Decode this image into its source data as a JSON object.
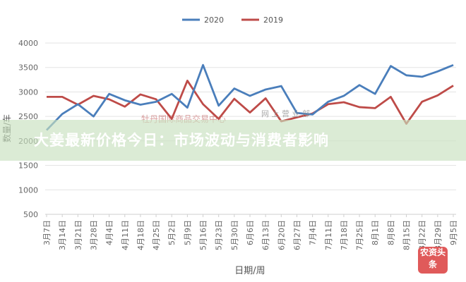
{
  "chart_data": {
    "type": "line",
    "title": "",
    "xlabel": "日期/周",
    "ylabel": "数量/车",
    "ylim": [
      500,
      4000
    ],
    "yticks": [
      500,
      1000,
      1500,
      2000,
      2500,
      3000,
      3500,
      4000
    ],
    "grid": true,
    "legend_position": "top",
    "categories": [
      "3月7日",
      "3月14日",
      "3月21日",
      "3月28日",
      "4月4日",
      "4月11日",
      "4月18日",
      "4月25日",
      "5月2日",
      "5月9日",
      "5月16日",
      "5月23日",
      "5月30日",
      "6月6日",
      "6月13日",
      "6月20日",
      "6月27日",
      "7月4日",
      "7月11日",
      "7月18日",
      "7月25日",
      "8月1日",
      "8月8日",
      "8月15日",
      "8月22日",
      "8月29日",
      "9月5日"
    ],
    "series": [
      {
        "name": "2020",
        "color": "#4a7ebb",
        "values": [
          2220,
          2550,
          2750,
          2500,
          2960,
          2830,
          2740,
          2800,
          2960,
          2680,
          3550,
          2720,
          3070,
          2920,
          3050,
          3120,
          2570,
          2540,
          2800,
          2920,
          3140,
          2960,
          3530,
          3340,
          3310,
          3420,
          3550
        ]
      },
      {
        "name": "2019",
        "color": "#be4b48",
        "values": [
          2900,
          2900,
          2740,
          2920,
          2850,
          2700,
          2950,
          2850,
          2450,
          3230,
          2750,
          2450,
          2860,
          2580,
          2870,
          2400,
          2480,
          2560,
          2750,
          2790,
          2690,
          2670,
          2900,
          2350,
          2800,
          2930,
          3130
        ]
      }
    ]
  },
  "overlay": {
    "headline": "大姜最新价格今日：市场波动与消费者影响",
    "watermark": "牡丹国际商品交易中心",
    "watermark_sub": "网 上 营 业 部",
    "logo": "农资头条"
  }
}
